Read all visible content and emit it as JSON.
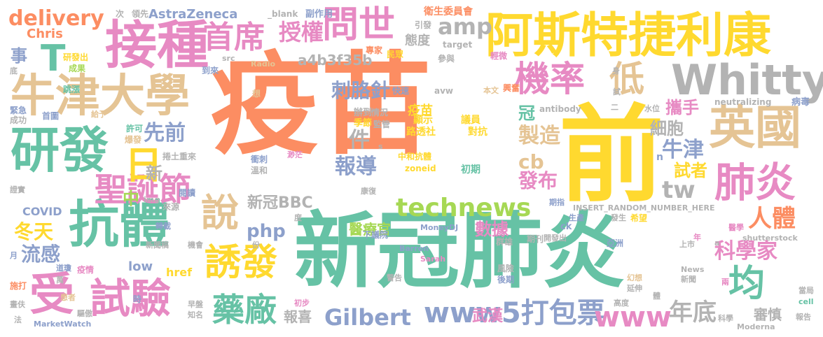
{
  "palette": {
    "orange": "#fc8d62",
    "green": "#66c2a5",
    "yellow": "#ffd92f",
    "pink": "#e78ac3",
    "blue": "#8da0cb",
    "lime": "#a6d854",
    "tan": "#e5c494",
    "gray": "#b3b3b3"
  },
  "words": [
    {
      "text": "疫苗",
      "color": "#fc8d62"
    },
    {
      "text": "新冠肺炎",
      "color": "#66c2a5"
    },
    {
      "text": "前",
      "color": "#ffd92f"
    },
    {
      "text": "阿斯特捷利康",
      "color": "#ffd92f"
    },
    {
      "text": "接種",
      "color": "#e78ac3"
    },
    {
      "text": "牛津大學",
      "color": "#e5c494"
    },
    {
      "text": "Whitty",
      "color": "#b3b3b3"
    },
    {
      "text": "研發",
      "color": "#66c2a5"
    },
    {
      "text": "抗體",
      "color": "#66c2a5"
    },
    {
      "text": "英國",
      "color": "#e5c494"
    },
    {
      "text": "試驗",
      "color": "#e78ac3"
    },
    {
      "text": "受",
      "color": "#e78ac3"
    },
    {
      "text": "誘發",
      "color": "#ffd92f"
    },
    {
      "text": "問世",
      "color": "#e78ac3"
    },
    {
      "text": "機率",
      "color": "#e78ac3"
    },
    {
      "text": "低",
      "color": "#e5c494"
    },
    {
      "text": "肺炎",
      "color": "#e78ac3"
    },
    {
      "text": "聖誕節",
      "color": "#e78ac3"
    },
    {
      "text": "首席",
      "color": "#e78ac3"
    },
    {
      "text": "日",
      "color": "#ffd92f"
    },
    {
      "text": "T",
      "color": "#66c2a5"
    },
    {
      "text": "說",
      "color": "#e5c494"
    },
    {
      "text": "藥廠",
      "color": "#66c2a5"
    },
    {
      "text": "均",
      "color": "#66c2a5"
    },
    {
      "text": "technews",
      "color": "#a6d854"
    },
    {
      "text": "www5打包票",
      "color": "#8da0cb"
    },
    {
      "text": "www",
      "color": "#e78ac3"
    },
    {
      "text": "delivery",
      "color": "#fc8d62"
    },
    {
      "text": "授權",
      "color": "#e78ac3"
    },
    {
      "text": "amp",
      "color": "#b3b3b3"
    },
    {
      "text": "刺胳針",
      "color": "#8da0cb"
    },
    {
      "text": "tw",
      "color": "#b3b3b3"
    },
    {
      "text": "人體",
      "color": "#fc8d62"
    },
    {
      "text": "Gilbert",
      "color": "#8da0cb"
    },
    {
      "text": "年底",
      "color": "#b3b3b3"
    },
    {
      "text": "先前",
      "color": "#8da0cb"
    },
    {
      "text": "製造",
      "color": "#e5c494"
    },
    {
      "text": "細胞",
      "color": "#b3b3b3"
    },
    {
      "text": "牛津",
      "color": "#8da0cb"
    },
    {
      "text": "報導",
      "color": "#8da0cb"
    },
    {
      "text": "件",
      "color": "#b3b3b3"
    },
    {
      "text": "cb",
      "color": "#e5c494"
    },
    {
      "text": "發布",
      "color": "#e78ac3"
    },
    {
      "text": "科學家",
      "color": "#e78ac3"
    },
    {
      "text": "試者",
      "color": "#ffd92f"
    },
    {
      "text": "攜手",
      "color": "#e78ac3"
    },
    {
      "text": "流感",
      "color": "#8da0cb"
    },
    {
      "text": "冬天",
      "color": "#ffd92f"
    },
    {
      "text": "新冠BBC",
      "color": "#b3b3b3"
    },
    {
      "text": "php",
      "color": "#8da0cb"
    },
    {
      "text": "事",
      "color": "#8da0cb"
    },
    {
      "text": "AstraZeneca",
      "color": "#8da0cb"
    },
    {
      "text": "a4b3f35b",
      "color": "#b3b3b3"
    },
    {
      "text": "Chris",
      "color": "#fc8d62"
    },
    {
      "text": "中",
      "color": "#a6d854"
    },
    {
      "text": "新",
      "color": "#b3b3b3"
    },
    {
      "text": "冠",
      "color": "#66c2a5"
    },
    {
      "text": "醫療官",
      "color": "#a6d854"
    },
    {
      "text": "數據",
      "color": "#e78ac3"
    },
    {
      "text": "武漢",
      "color": "#e78ac3"
    },
    {
      "text": "審慎",
      "color": "#b3b3b3"
    },
    {
      "text": "報喜",
      "color": "#b3b3b3"
    },
    {
      "text": "low",
      "color": "#8da0cb"
    },
    {
      "text": "href",
      "color": "#ffd92f"
    },
    {
      "text": "COVID",
      "color": "#8da0cb"
    },
    {
      "text": "態度",
      "color": "#b3b3b3"
    },
    {
      "text": "疫苗",
      "color": "#ffd92f",
      "small": true
    },
    {
      "text": "顯示",
      "color": "#ffd92f"
    },
    {
      "text": "議員",
      "color": "#ffd92f"
    },
    {
      "text": "路透社",
      "color": "#ffd92f"
    },
    {
      "text": "對抗",
      "color": "#ffd92f"
    },
    {
      "text": "中和抗體",
      "color": "#ffd92f"
    },
    {
      "text": "zoneid",
      "color": "#ffd92f"
    },
    {
      "text": "初期",
      "color": "#66c2a5"
    },
    {
      "text": "辦到",
      "color": "#b3b3b3"
    },
    {
      "text": "情況",
      "color": "#b3b3b3"
    },
    {
      "text": "季節",
      "color": "#ffd92f"
    },
    {
      "text": "監管",
      "color": "#b3b3b3"
    },
    {
      "text": "衛生委員會",
      "color": "#fc8d62"
    },
    {
      "text": "引發",
      "color": "#b3b3b3"
    },
    {
      "text": "專家",
      "color": "#fc8d62"
    },
    {
      "text": "民眾",
      "color": "#ffd92f"
    },
    {
      "text": "target",
      "color": "#b3b3b3"
    },
    {
      "text": "輕微",
      "color": "#e78ac3"
    },
    {
      "text": "參與",
      "color": "#b3b3b3"
    },
    {
      "text": "_blank",
      "color": "#b3b3b3"
    },
    {
      "text": "副作用",
      "color": "#8da0cb"
    },
    {
      "text": "次",
      "color": "#b3b3b3"
    },
    {
      "text": "領先",
      "color": "#b3b3b3"
    },
    {
      "text": "研發出",
      "color": "#ffd92f"
    },
    {
      "text": "成果",
      "color": "#a6d854"
    },
    {
      "text": "src",
      "color": "#b3b3b3"
    },
    {
      "text": "Radio",
      "color": "#e5c494"
    },
    {
      "text": "到來",
      "color": "#8da0cb"
    },
    {
      "text": "想",
      "color": "#e5c494"
    },
    {
      "text": "快速",
      "color": "#8da0cb"
    },
    {
      "text": "avw",
      "color": "#b3b3b3"
    },
    {
      "text": "本文",
      "color": "#e5c494"
    },
    {
      "text": "興奮",
      "color": "#fc8d62"
    },
    {
      "text": "antibody",
      "color": "#b3b3b3"
    },
    {
      "text": "水位",
      "color": "#b3b3b3"
    },
    {
      "text": "neutralizing",
      "color": "#b3b3b3"
    },
    {
      "text": "病毒",
      "color": "#8da0cb"
    },
    {
      "text": "跳漲",
      "color": "#66c2a5"
    },
    {
      "text": "首圖",
      "color": "#8da0cb"
    },
    {
      "text": "緊急",
      "color": "#8da0cb"
    },
    {
      "text": "成功",
      "color": "#b3b3b3"
    },
    {
      "text": "給予",
      "color": "#e5c494"
    },
    {
      "text": "許可",
      "color": "#66c2a5"
    },
    {
      "text": "爆發",
      "color": "#e5c494"
    },
    {
      "text": "捲土重來",
      "color": "#b3b3b3"
    },
    {
      "text": "衝刺",
      "color": "#8da0cb"
    },
    {
      "text": "溫和",
      "color": "#b3b3b3"
    },
    {
      "text": "渺茫",
      "color": "#e78ac3"
    },
    {
      "text": "閱讀",
      "color": "#8da0cb"
    },
    {
      "text": "來源",
      "color": "#b3b3b3"
    },
    {
      "text": "康復",
      "color": "#b3b3b3"
    },
    {
      "text": "期指",
      "color": "#8da0cb"
    },
    {
      "text": "生產",
      "color": "#8da0cb"
    },
    {
      "text": "發生",
      "color": "#b3b3b3"
    },
    {
      "text": "希望",
      "color": "#ffd92f"
    },
    {
      "text": "INSERT_RANDOM_NUMBER_HERE",
      "color": "#b3b3b3"
    },
    {
      "text": "醫學",
      "color": "#e78ac3"
    },
    {
      "text": "轉載",
      "color": "#8da0cb"
    },
    {
      "text": "shutterstock",
      "color": "#b3b3b3"
    },
    {
      "text": "下議院",
      "color": "#8da0cb"
    },
    {
      "text": "MoneyDJ",
      "color": "#8da0cb"
    },
    {
      "text": "群雄",
      "color": "#b3b3b3"
    },
    {
      "text": "期刊",
      "color": "#b3b3b3"
    },
    {
      "text": "開發出",
      "color": "#b3b3b3"
    },
    {
      "text": "亞洲",
      "color": "#8da0cb"
    },
    {
      "text": "上市",
      "color": "#b3b3b3"
    },
    {
      "text": "新聞稿",
      "color": "#b3b3b3"
    },
    {
      "text": "機會",
      "color": "#b3b3b3"
    },
    {
      "text": "Barron",
      "color": "#8da0cb"
    },
    {
      "text": "Sarah",
      "color": "#e78ac3"
    },
    {
      "text": "風險",
      "color": "#b3b3b3"
    },
    {
      "text": "後期",
      "color": "#8da0cb"
    },
    {
      "text": "幻想",
      "color": "#e5c494"
    },
    {
      "text": "延伸",
      "color": "#b3b3b3"
    },
    {
      "text": "News",
      "color": "#b3b3b3"
    },
    {
      "text": "新聞",
      "color": "#b3b3b3"
    },
    {
      "text": "當局",
      "color": "#b3b3b3"
    },
    {
      "text": "道瓊",
      "color": "#8da0cb"
    },
    {
      "text": "疫情",
      "color": "#e78ac3"
    },
    {
      "text": "施打",
      "color": "#fc8d62"
    },
    {
      "text": "警告",
      "color": "#b3b3b3"
    },
    {
      "text": "畫伕",
      "color": "#b3b3b3"
    },
    {
      "text": "患者",
      "color": "#e5c494"
    },
    {
      "text": "時",
      "color": "#8da0cb"
    },
    {
      "text": "早盤",
      "color": "#b3b3b3"
    },
    {
      "text": "知名",
      "color": "#b3b3b3"
    },
    {
      "text": "驅傲",
      "color": "#b3b3b3"
    },
    {
      "text": "初步",
      "color": "#e78ac3"
    },
    {
      "text": "MarketWatch",
      "color": "#8da0cb"
    },
    {
      "text": "高度",
      "color": "#b3b3b3"
    },
    {
      "text": "體",
      "color": "#b3b3b3"
    },
    {
      "text": "科學",
      "color": "#b3b3b3"
    },
    {
      "text": "Moderna",
      "color": "#b3b3b3"
    },
    {
      "text": "cell",
      "color": "#66c2a5"
    },
    {
      "text": "報告",
      "color": "#b3b3b3"
    },
    {
      "text": "證實",
      "color": "#b3b3b3"
    },
    {
      "text": "img",
      "color": "#b3b3b3"
    },
    {
      "text": "ck",
      "color": "#8da0cb"
    },
    {
      "text": "度",
      "color": "#b3b3b3"
    },
    {
      "text": "份",
      "color": "#b3b3b3"
    },
    {
      "text": "月",
      "color": "#8da0cb"
    },
    {
      "text": "底",
      "color": "#b3b3b3"
    },
    {
      "text": "萬",
      "color": "#b3b3b3"
    },
    {
      "text": "法",
      "color": "#b3b3b3"
    },
    {
      "text": "兩",
      "color": "#e78ac3"
    },
    {
      "text": "年",
      "color": "#e78ac3"
    },
    {
      "text": "二",
      "color": "#b3b3b3"
    },
    {
      "text": "身",
      "color": "#b3b3b3"
    },
    {
      "text": "試",
      "color": "#b3b3b3"
    },
    {
      "text": "n",
      "color": "#8da0cb"
    },
    {
      "text": "a",
      "color": "#b3b3b3"
    },
    {
      "text": "s",
      "color": "#b3b3b3"
    }
  ]
}
